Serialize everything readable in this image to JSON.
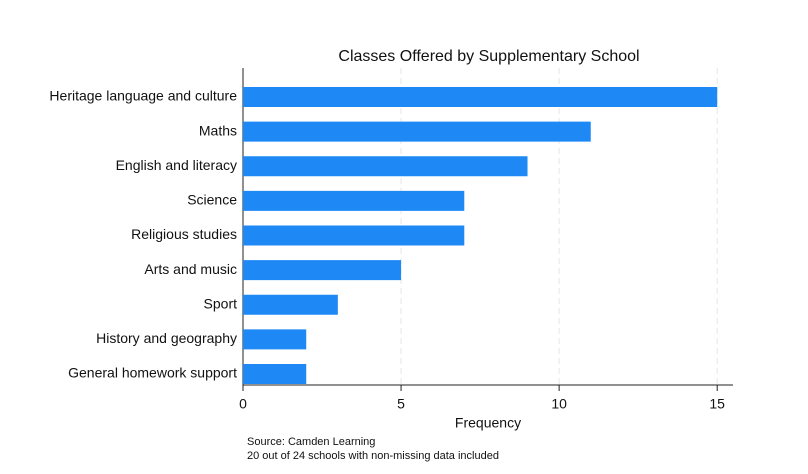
{
  "chart_data": {
    "type": "bar",
    "orientation": "horizontal",
    "title": "Classes Offered by Supplementary School",
    "xlabel": "Frequency",
    "categories": [
      "Heritage language and culture",
      "Maths",
      "English and literacy",
      "Science",
      "Religious studies",
      "Arts and music",
      "Sport",
      "History and geography",
      "General homework support"
    ],
    "values": [
      15,
      11,
      9,
      7,
      7,
      5,
      3,
      2,
      2
    ],
    "color": "#1e88f5",
    "xlim": [
      0,
      15.5
    ],
    "xticks": [
      0,
      5,
      10,
      15
    ],
    "grid": true,
    "notes": [
      "Source: Camden Learning",
      "20 out of 24 schools with non-missing data included"
    ]
  }
}
